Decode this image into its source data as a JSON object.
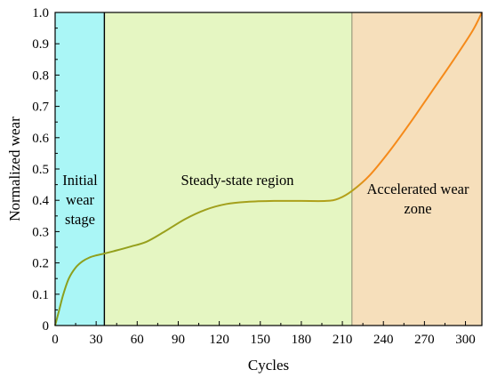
{
  "chart_data": {
    "type": "line",
    "xlabel": "Cycles",
    "ylabel": "Normalized wear",
    "xlim": [
      0,
      312
    ],
    "ylim": [
      0,
      1.0
    ],
    "xticks": [
      0,
      30,
      60,
      90,
      120,
      150,
      180,
      210,
      240,
      270,
      300
    ],
    "yticks": [
      0,
      0.1,
      0.2,
      0.3,
      0.4,
      0.5,
      0.6,
      0.7,
      0.8,
      0.9,
      1.0
    ],
    "xtick_labels": [
      "0",
      "30",
      "60",
      "90",
      "120",
      "150",
      "180",
      "210",
      "240",
      "270",
      "300"
    ],
    "ytick_labels": [
      "0",
      "0.1",
      "0.2",
      "0.3",
      "0.4",
      "0.5",
      "0.6",
      "0.7",
      "0.8",
      "0.9",
      "1.0"
    ],
    "regions": [
      {
        "label_lines": [
          "Initial",
          "wear",
          "stage"
        ],
        "x_start": 0,
        "x_end": 36,
        "color": "#aaf6f6"
      },
      {
        "label_lines": [
          "Steady-state region"
        ],
        "x_start": 36,
        "x_end": 217,
        "color": "#e5f6c2"
      },
      {
        "label_lines": [
          "Accelerated wear",
          "zone"
        ],
        "x_start": 217,
        "x_end": 312,
        "color": "#f6dfbb"
      }
    ],
    "boundaries": [
      36,
      217
    ],
    "series": [
      {
        "color_start": "#8aa01e",
        "color_end": "#f58a1a",
        "x": [
          0,
          3,
          6,
          10,
          15,
          20,
          25,
          30,
          36,
          45,
          55,
          67,
          80,
          95,
          110,
          125,
          140,
          160,
          180,
          198,
          207,
          217,
          230,
          245,
          260,
          275,
          290,
          305,
          312
        ],
        "y": [
          0,
          0.05,
          0.1,
          0.15,
          0.185,
          0.205,
          0.217,
          0.224,
          0.23,
          0.24,
          0.252,
          0.268,
          0.3,
          0.34,
          0.37,
          0.388,
          0.395,
          0.398,
          0.398,
          0.398,
          0.405,
          0.43,
          0.48,
          0.56,
          0.65,
          0.745,
          0.84,
          0.94,
          1.0
        ]
      }
    ]
  }
}
